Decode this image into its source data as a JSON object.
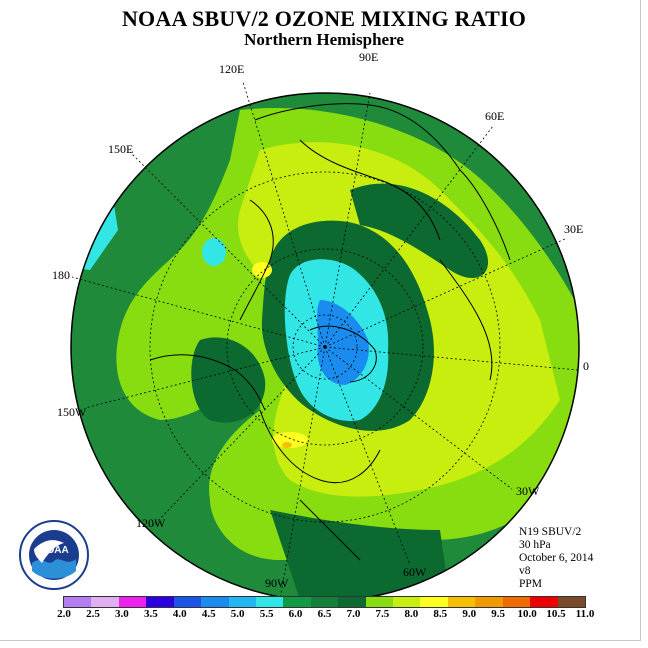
{
  "header": {
    "title": "NOAA SBUV/2 OZONE MIXING RATIO",
    "subtitle": "Northern Hemisphere"
  },
  "map": {
    "projection": "north-polar-stereographic",
    "longitude_labels": [
      "90E",
      "60E",
      "30E",
      "0",
      "30W",
      "60W",
      "90W",
      "120W",
      "150W",
      "180",
      "150E",
      "120E"
    ]
  },
  "info": {
    "satellite": "N19 SBUV/2",
    "level": "30 hPa",
    "date": "October 6, 2014",
    "version": "v8",
    "units": "PPM"
  },
  "colorbar": {
    "tick_labels": [
      "2.0",
      "2.5",
      "3.0",
      "3.5",
      "4.0",
      "4.5",
      "5.0",
      "5.5",
      "6.0",
      "6.5",
      "7.0",
      "7.5",
      "8.0",
      "8.5",
      "9.0",
      "9.5",
      "10.0",
      "10.5",
      "11.0"
    ],
    "colors": [
      "#b57ef0",
      "#e0aef2",
      "#ee22ee",
      "#2a00e0",
      "#1a55e8",
      "#1a8cf0",
      "#22b6f4",
      "#33e6e6",
      "#119944",
      "#11803a",
      "#0c6a30",
      "#88dd10",
      "#c8ee10",
      "#ffff20",
      "#f4c000",
      "#f09a00",
      "#f06a00",
      "#ee0000",
      "#7a4a2a"
    ]
  },
  "logo": {
    "text": "NOAA"
  },
  "field_colors": {
    "outer_dark_green": "#1f8a3a",
    "darkest_green": "#0c6a30",
    "light_green": "#88dd10",
    "yellow_green": "#c8ee10",
    "cyan": "#33e6e6",
    "blue": "#1a8cf0",
    "yellow": "#ffff20",
    "orange": "#f4c000"
  }
}
